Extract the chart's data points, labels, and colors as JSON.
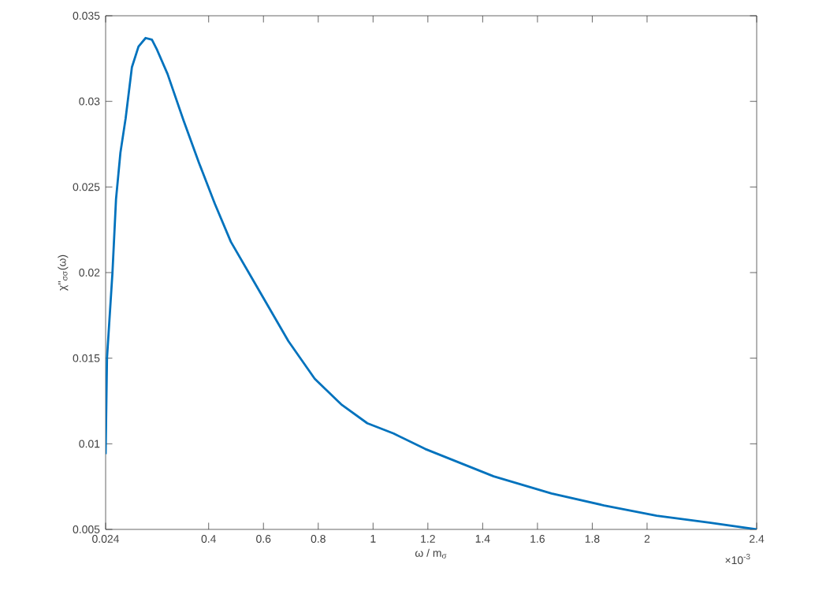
{
  "chart_data": {
    "type": "line",
    "xlabel": "ω / m$_{σ}$",
    "ylabel": "χ''$_{σσ}$(ω)",
    "x": [
      0.024,
      0.029,
      0.049,
      0.062,
      0.078,
      0.097,
      0.12,
      0.144,
      0.17,
      0.193,
      0.212,
      0.25,
      0.308,
      0.365,
      0.423,
      0.481,
      0.557,
      0.691,
      0.787,
      0.884,
      0.979,
      1.075,
      1.19,
      1.44,
      1.651,
      1.843,
      2.035,
      2.227,
      2.4
    ],
    "series": [
      {
        "color": "#0072bd",
        "values": [
          0.0094,
          0.015,
          0.02,
          0.0243,
          0.027,
          0.029,
          0.032,
          0.0332,
          0.0337,
          0.0336,
          0.033,
          0.0316,
          0.0289,
          0.0264,
          0.024,
          0.0218,
          0.0197,
          0.016,
          0.0138,
          0.0123,
          0.0112,
          0.0106,
          0.0097,
          0.0081,
          0.0071,
          0.0064,
          0.0058,
          0.0054,
          0.005
        ]
      }
    ],
    "xlim": [
      0.024,
      2.4
    ],
    "ylim": [
      0.005,
      0.035
    ],
    "xticks": [
      0.024,
      0.4,
      0.6,
      0.8,
      1,
      1.2,
      1.4,
      1.6,
      1.8,
      2,
      2.4
    ],
    "yticks": [
      0.005,
      0.01,
      0.015,
      0.02,
      0.025,
      0.03,
      0.035
    ],
    "annotations": [
      "×10$^{-3}$"
    ],
    "grid": false,
    "marker": "none",
    "line_style": "solid"
  }
}
